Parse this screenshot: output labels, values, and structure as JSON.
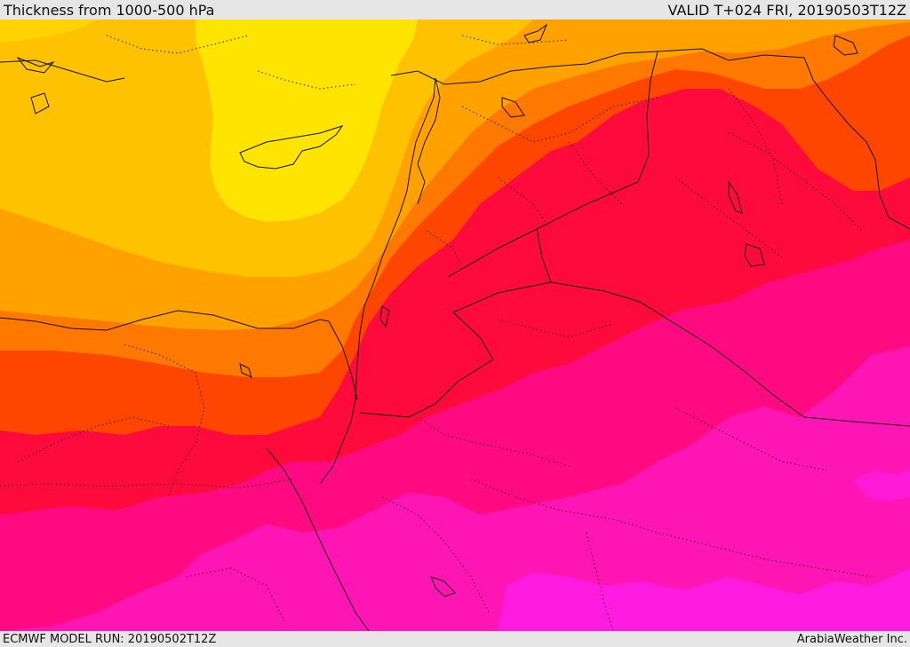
{
  "header": {
    "title": "Thickness from 1000-500 hPa",
    "valid": "VALID T+024 FRI, 20190503T12Z"
  },
  "footer": {
    "model_run": "ECMWF MODEL RUN: 20190502T12Z",
    "credit": "ArabiaWeather Inc."
  },
  "colors": {
    "yellow": "#ffe400",
    "yellow_orange": "#ffc200",
    "orange": "#ffa200",
    "dark_orange": "#ff7800",
    "red_orange": "#ff4600",
    "red": "#ff0a3c",
    "magenta_red": "#ff0a80",
    "magenta": "#ff14b4",
    "bright_magenta": "#ff1ce0"
  }
}
